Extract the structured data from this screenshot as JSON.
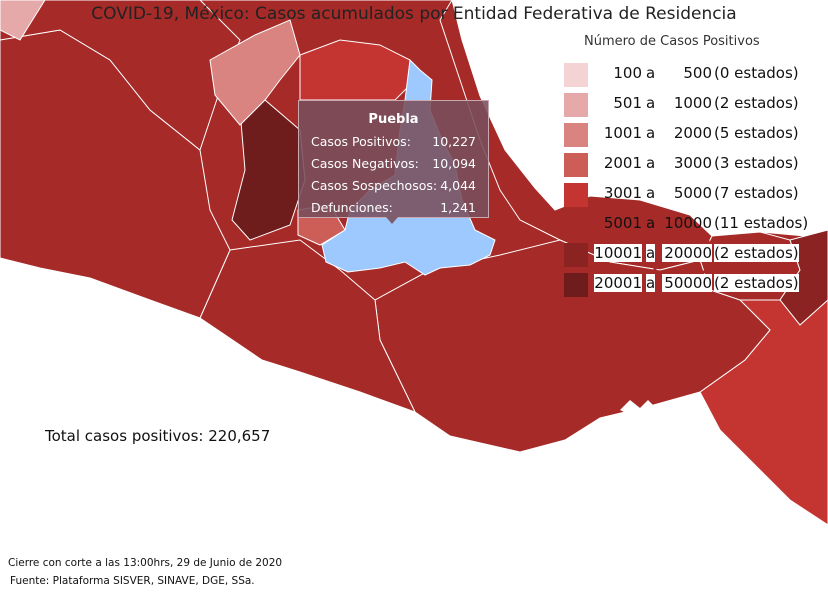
{
  "title": "COVID-19, México: Casos acumulados por Entidad Federativa de Residencia",
  "legend": {
    "title": "Número de Casos Positivos",
    "connector": "a",
    "ranges": [
      {
        "lo": "100",
        "hi": "500",
        "count": "(0 estados)",
        "color": "#f3d3d3"
      },
      {
        "lo": "501",
        "hi": "1000",
        "count": "(2 estados)",
        "color": "#e6a9a9"
      },
      {
        "lo": "1001",
        "hi": "2000",
        "count": "(5 estados)",
        "color": "#d98480"
      },
      {
        "lo": "2001",
        "hi": "3000",
        "count": "(3 estados)",
        "color": "#cc5d57"
      },
      {
        "lo": "3001",
        "hi": "5000",
        "count": "(7 estados)",
        "color": "#c43431"
      },
      {
        "lo": "5001",
        "hi": "10000",
        "count": "(11 estados)",
        "color": "#a52a28"
      },
      {
        "lo": "10001",
        "hi": "20000",
        "count": "(2 estados)",
        "color": "#8b2323"
      },
      {
        "lo": "20001",
        "hi": "50000",
        "count": "(2 estados)",
        "color": "#6e1c1c"
      }
    ]
  },
  "tooltip": {
    "state": "Puebla",
    "rows": [
      {
        "label": "Casos Positivos:",
        "value": "10,227"
      },
      {
        "label": "Casos Negativos:",
        "value": "10,094"
      },
      {
        "label": "Casos Sospechosos:",
        "value": "4,044"
      },
      {
        "label": "Defunciones:",
        "value": "1,241"
      }
    ]
  },
  "highlight_color": "#9ec9ff",
  "total_label": "Total casos positivos: 220,657",
  "footer": {
    "cutoff": "Cierre con corte a las 13:00hrs, 29 de Junio de 2020",
    "source": "Fuente: Plataforma SISVER, SINAVE, DGE, SSa."
  }
}
